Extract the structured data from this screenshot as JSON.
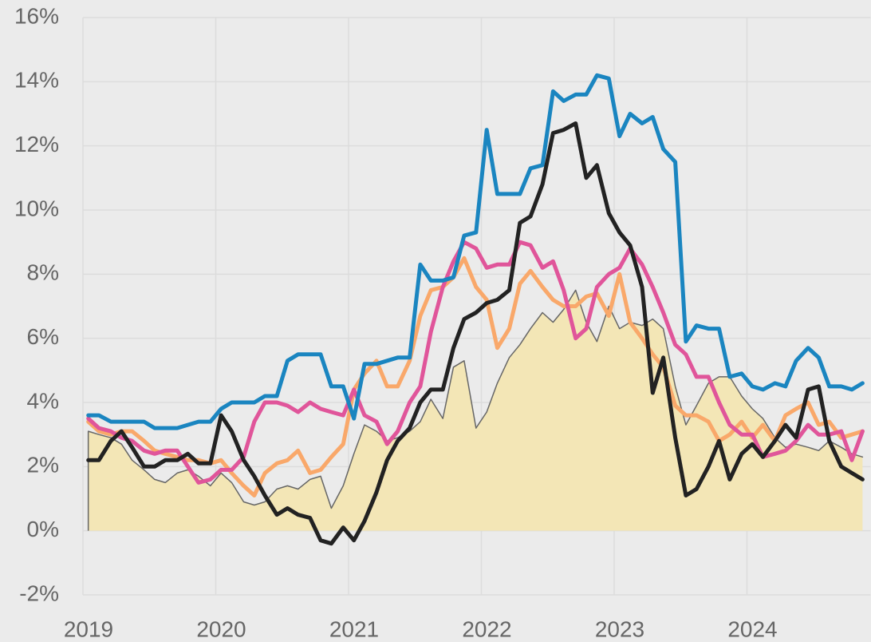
{
  "chart_data": {
    "type": "line",
    "x": [
      2019.04,
      2019.12,
      2019.21,
      2019.29,
      2019.37,
      2019.46,
      2019.54,
      2019.62,
      2019.71,
      2019.79,
      2019.87,
      2019.96,
      2020.04,
      2020.12,
      2020.21,
      2020.29,
      2020.37,
      2020.46,
      2020.54,
      2020.62,
      2020.71,
      2020.79,
      2020.87,
      2020.96,
      2021.04,
      2021.12,
      2021.21,
      2021.29,
      2021.37,
      2021.46,
      2021.54,
      2021.62,
      2021.71,
      2021.79,
      2021.87,
      2021.96,
      2022.04,
      2022.12,
      2022.21,
      2022.29,
      2022.37,
      2022.46,
      2022.54,
      2022.62,
      2022.71,
      2022.79,
      2022.87,
      2022.96,
      2023.04,
      2023.12,
      2023.21,
      2023.29,
      2023.37,
      2023.46,
      2023.54,
      2023.62,
      2023.71,
      2023.79,
      2023.87,
      2023.96,
      2024.04,
      2024.12,
      2024.21,
      2024.29,
      2024.37,
      2024.46,
      2024.54,
      2024.62,
      2024.71,
      2024.79,
      2024.87
    ],
    "xlim": [
      2019,
      2024.93
    ],
    "xticks": [
      2019,
      2020,
      2021,
      2022,
      2023,
      2024
    ],
    "ylim": [
      -2,
      16
    ],
    "yticks": [
      {
        "value": -2,
        "label": "-2%"
      },
      {
        "value": 0,
        "label": "0%"
      },
      {
        "value": 2,
        "label": "2%"
      },
      {
        "value": 4,
        "label": "4%"
      },
      {
        "value": 6,
        "label": "6%"
      },
      {
        "value": 8,
        "label": "8%"
      },
      {
        "value": 10,
        "label": "10%"
      },
      {
        "value": 12,
        "label": "12%"
      },
      {
        "value": 14,
        "label": "14%"
      },
      {
        "value": 16,
        "label": "16%"
      }
    ],
    "grid": true,
    "series": [
      {
        "color": "#666666",
        "fill": "#f3e6b6",
        "values": [
          3.1,
          3.0,
          2.9,
          2.7,
          2.2,
          1.9,
          1.6,
          1.5,
          1.8,
          1.9,
          1.7,
          1.4,
          1.8,
          1.5,
          0.9,
          0.8,
          0.9,
          1.3,
          1.4,
          1.3,
          1.6,
          1.7,
          0.7,
          1.4,
          2.4,
          3.3,
          3.1,
          2.8,
          2.9,
          3.1,
          3.4,
          4.1,
          3.5,
          5.1,
          5.3,
          3.2,
          3.7,
          4.6,
          5.4,
          5.8,
          6.3,
          6.8,
          6.5,
          6.9,
          7.5,
          6.5,
          5.9,
          7.0,
          6.3,
          6.5,
          6.4,
          6.6,
          6.3,
          4.5,
          3.3,
          3.9,
          4.6,
          4.8,
          4.8,
          4.2,
          3.8,
          3.5,
          2.9,
          2.6,
          2.7,
          2.6,
          2.5,
          2.8,
          2.6,
          2.4,
          2.3
        ]
      },
      {
        "color": "#f9a86a",
        "values": [
          3.4,
          3.1,
          3.0,
          3.1,
          3.1,
          2.8,
          2.5,
          2.4,
          2.3,
          2.2,
          2.2,
          2.1,
          2.2,
          1.8,
          1.4,
          1.1,
          1.8,
          2.1,
          2.2,
          2.5,
          1.8,
          1.9,
          2.3,
          2.7,
          4.4,
          4.9,
          5.3,
          4.5,
          4.5,
          5.3,
          6.7,
          7.5,
          7.6,
          7.9,
          8.5,
          7.6,
          7.2,
          5.7,
          6.3,
          7.7,
          8.1,
          7.6,
          7.2,
          7.0,
          7.0,
          7.3,
          7.4,
          6.7,
          8.0,
          6.5,
          6.0,
          5.5,
          5.1,
          3.9,
          3.6,
          3.6,
          3.4,
          2.8,
          3.0,
          3.4,
          2.9,
          3.3,
          2.8,
          3.6,
          3.8,
          4.0,
          3.3,
          3.4,
          2.9,
          3.0,
          3.1
        ]
      },
      {
        "color": "#e0559a",
        "values": [
          3.5,
          3.2,
          3.1,
          2.9,
          2.8,
          2.5,
          2.4,
          2.5,
          2.5,
          2.0,
          1.5,
          1.6,
          1.9,
          1.9,
          2.3,
          3.4,
          4.0,
          4.0,
          3.9,
          3.7,
          4.0,
          3.8,
          3.7,
          3.6,
          4.4,
          3.6,
          3.4,
          2.7,
          3.1,
          4.0,
          4.5,
          6.2,
          7.6,
          8.4,
          9.0,
          8.8,
          8.2,
          8.3,
          8.3,
          9.0,
          8.9,
          8.2,
          8.4,
          7.5,
          6.0,
          6.3,
          7.6,
          8.0,
          8.2,
          8.8,
          8.3,
          7.6,
          6.8,
          5.8,
          5.5,
          4.8,
          4.8,
          4.0,
          3.3,
          3.0,
          3.0,
          2.3,
          2.4,
          2.5,
          2.8,
          3.3,
          3.0,
          3.0,
          3.1,
          2.2,
          3.1
        ]
      },
      {
        "color": "#1a85c0",
        "values": [
          3.6,
          3.6,
          3.4,
          3.4,
          3.4,
          3.4,
          3.2,
          3.2,
          3.2,
          3.3,
          3.4,
          3.4,
          3.8,
          4.0,
          4.0,
          4.0,
          4.2,
          4.2,
          5.3,
          5.5,
          5.5,
          5.5,
          4.5,
          4.5,
          3.5,
          5.2,
          5.2,
          5.3,
          5.4,
          5.4,
          8.3,
          7.8,
          7.8,
          7.9,
          9.2,
          9.3,
          12.5,
          10.5,
          10.5,
          10.5,
          11.3,
          11.4,
          13.7,
          13.4,
          13.6,
          13.6,
          14.2,
          14.1,
          12.3,
          13.0,
          12.7,
          12.9,
          11.9,
          11.5,
          5.9,
          6.4,
          6.3,
          6.3,
          4.8,
          4.9,
          4.5,
          4.4,
          4.6,
          4.5,
          5.3,
          5.7,
          5.4,
          4.5,
          4.5,
          4.4,
          4.6
        ]
      },
      {
        "color": "#222222",
        "values": [
          2.2,
          2.2,
          2.8,
          3.1,
          2.6,
          2.0,
          2.0,
          2.2,
          2.2,
          2.4,
          2.1,
          2.1,
          3.6,
          3.1,
          2.2,
          1.7,
          1.1,
          0.5,
          0.7,
          0.5,
          0.4,
          -0.3,
          -0.4,
          0.1,
          -0.3,
          0.3,
          1.2,
          2.2,
          2.8,
          3.2,
          4.0,
          4.4,
          4.4,
          5.7,
          6.6,
          6.8,
          7.1,
          7.2,
          7.5,
          9.6,
          9.8,
          10.8,
          12.4,
          12.5,
          12.7,
          11.0,
          11.4,
          9.9,
          9.3,
          8.9,
          7.6,
          4.3,
          5.4,
          2.9,
          1.1,
          1.3,
          2.0,
          2.8,
          1.6,
          2.4,
          2.7,
          2.3,
          2.8,
          3.3,
          2.9,
          4.4,
          4.5,
          2.8,
          2.0,
          1.8,
          1.6
        ]
      }
    ]
  }
}
